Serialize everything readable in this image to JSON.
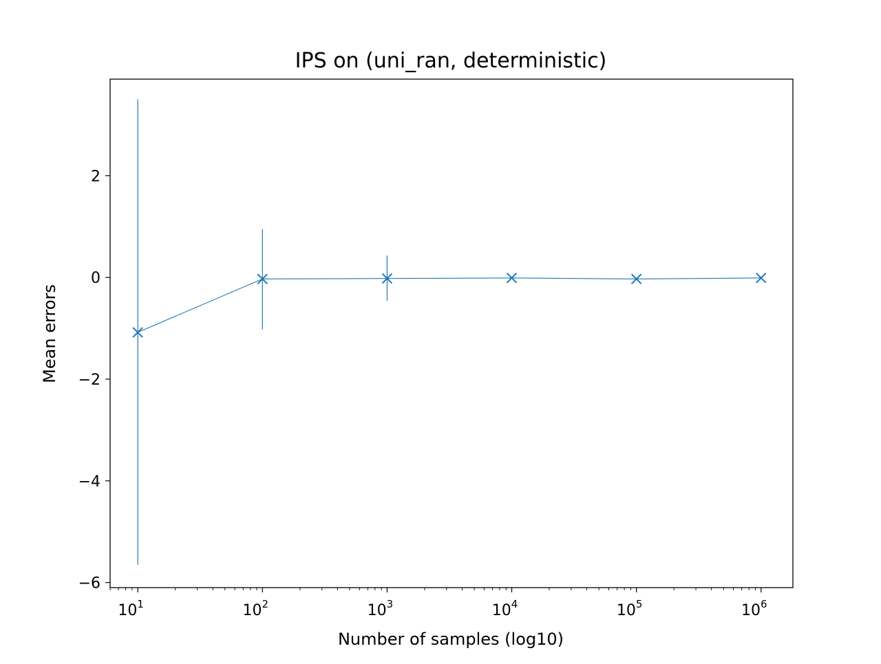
{
  "chart_data": {
    "type": "line",
    "title": "IPS on (uni_ran, deterministic)",
    "xlabel": "Number of samples (log10)",
    "ylabel": "Mean errors",
    "x_scale": "log",
    "xlim": [
      6,
      1800000
    ],
    "ylim": [
      -6.1,
      3.9
    ],
    "grid": false,
    "marker": "x",
    "color": "#1f77b4",
    "x_ticks": [
      {
        "value": 10,
        "base": "10",
        "exp": "1"
      },
      {
        "value": 100,
        "base": "10",
        "exp": "2"
      },
      {
        "value": 1000,
        "base": "10",
        "exp": "3"
      },
      {
        "value": 10000,
        "base": "10",
        "exp": "4"
      },
      {
        "value": 100000,
        "base": "10",
        "exp": "5"
      },
      {
        "value": 1000000,
        "base": "10",
        "exp": "6"
      }
    ],
    "y_ticks": [
      {
        "value": 2,
        "label": "2"
      },
      {
        "value": 0,
        "label": "0"
      },
      {
        "value": -2,
        "label": "−2"
      },
      {
        "value": -4,
        "label": "−4"
      },
      {
        "value": -6,
        "label": "−6"
      }
    ],
    "series": [
      {
        "x": [
          10,
          100,
          1000,
          10000,
          100000,
          1000000
        ],
        "y": [
          -1.08,
          -0.03,
          -0.02,
          -0.01,
          -0.03,
          -0.01
        ],
        "err_low": [
          -5.65,
          -1.02,
          -0.46,
          -0.01,
          -0.03,
          -0.01
        ],
        "err_high": [
          3.5,
          0.95,
          0.43,
          -0.01,
          -0.03,
          -0.01
        ]
      }
    ]
  }
}
